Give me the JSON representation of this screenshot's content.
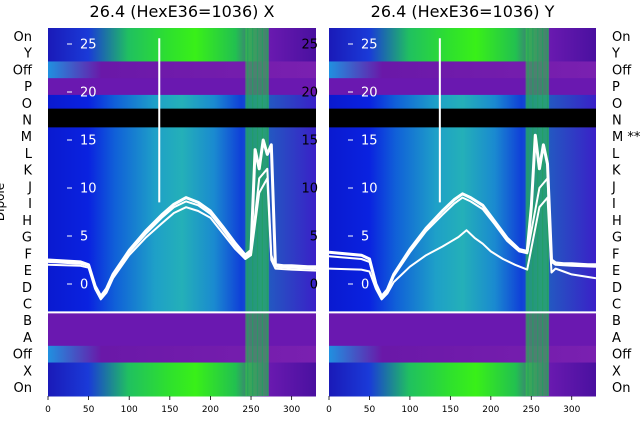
{
  "chart_data": [
    {
      "type": "heatmap",
      "title": "26.4 (HexE36=1036) X",
      "ylabel": "Dipole",
      "xlim": [
        0,
        330
      ],
      "x_ticks": [
        0,
        50,
        100,
        150,
        200,
        250,
        300
      ],
      "rows_top_to_bottom": [
        "On",
        "Y",
        "Off",
        "P",
        "O",
        "N",
        "M",
        "L",
        "K",
        "J",
        "I",
        "H",
        "G",
        "F",
        "E",
        "D",
        "C",
        "B",
        "A",
        "Off",
        "X",
        "On"
      ],
      "inset_ylim": [
        -3,
        27
      ],
      "inset_y_ticks": [
        25,
        20,
        15,
        10,
        5,
        0
      ],
      "overlay_series": [
        {
          "x": [
            0,
            40,
            50,
            58,
            65,
            72,
            80,
            100,
            120,
            140,
            155,
            170,
            185,
            200,
            215,
            230,
            243,
            250,
            255,
            260,
            265,
            270,
            275,
            280,
            290,
            300,
            320,
            330
          ],
          "y": [
            2.5,
            2.3,
            2.0,
            -0.2,
            -1.3,
            -0.5,
            1.0,
            3.5,
            5.5,
            7.2,
            8.3,
            9.0,
            8.5,
            7.6,
            6.0,
            4.3,
            3.0,
            3.5,
            14.0,
            12.0,
            15.0,
            13.5,
            14.5,
            2.0,
            1.9,
            1.9,
            1.8,
            1.8
          ]
        },
        {
          "x": [
            0,
            40,
            50,
            58,
            65,
            72,
            80,
            100,
            120,
            140,
            155,
            170,
            185,
            200,
            215,
            230,
            243,
            250,
            260,
            270,
            275,
            280,
            300,
            330
          ],
          "y": [
            2.3,
            2.1,
            1.9,
            -0.3,
            -1.5,
            -0.7,
            0.8,
            3.3,
            5.2,
            6.9,
            8.0,
            8.6,
            8.2,
            7.3,
            5.7,
            4.0,
            2.8,
            3.2,
            11.0,
            12.0,
            3.0,
            1.8,
            1.7,
            1.6
          ]
        },
        {
          "x": [
            0,
            40,
            50,
            58,
            65,
            72,
            80,
            100,
            120,
            140,
            155,
            170,
            185,
            200,
            215,
            230,
            243,
            250,
            260,
            270,
            275,
            280,
            300,
            330
          ],
          "y": [
            2.0,
            1.9,
            1.7,
            -0.5,
            -1.6,
            -0.9,
            0.6,
            3.0,
            4.8,
            6.3,
            7.4,
            8.0,
            7.6,
            6.9,
            5.3,
            3.7,
            2.6,
            3.0,
            9.5,
            11.0,
            2.5,
            1.6,
            1.5,
            1.4
          ]
        }
      ],
      "spike_x": 137,
      "spike_y": 25.6
    },
    {
      "type": "heatmap",
      "title": "26.4 (HexE36=1036) Y",
      "xlim": [
        0,
        330
      ],
      "x_ticks": [
        0,
        50,
        100,
        150,
        200,
        250,
        300
      ],
      "rows_top_to_bottom": [
        "On",
        "Y",
        "Off",
        "P",
        "O",
        "N",
        "M **",
        "L",
        "K",
        "J",
        "I",
        "H",
        "G",
        "F",
        "E",
        "D",
        "C",
        "B",
        "A",
        "Off",
        "X",
        "On"
      ],
      "inset_ylim": [
        -3,
        27
      ],
      "inset_y_ticks": [
        25,
        20,
        15,
        10,
        5,
        0
      ],
      "overlay_series": [
        {
          "x": [
            0,
            40,
            50,
            58,
            65,
            72,
            80,
            100,
            120,
            140,
            155,
            165,
            175,
            190,
            205,
            220,
            235,
            245,
            250,
            255,
            260,
            265,
            270,
            275,
            280,
            290,
            300,
            320,
            330
          ],
          "y": [
            3.3,
            3.0,
            2.6,
            0.0,
            -1.3,
            -0.6,
            1.0,
            3.6,
            5.8,
            7.6,
            8.8,
            9.4,
            9.0,
            8.2,
            6.5,
            4.8,
            3.6,
            3.4,
            8.0,
            15.5,
            12.0,
            14.5,
            12.5,
            2.5,
            2.2,
            2.1,
            2.1,
            2.0,
            2.0
          ]
        },
        {
          "x": [
            0,
            40,
            50,
            58,
            65,
            72,
            80,
            100,
            120,
            140,
            155,
            165,
            175,
            190,
            205,
            220,
            235,
            245,
            260,
            270,
            275,
            280,
            300,
            330
          ],
          "y": [
            2.9,
            2.6,
            2.3,
            -0.2,
            -1.4,
            -0.8,
            0.8,
            3.3,
            5.5,
            7.2,
            8.4,
            9.0,
            8.6,
            7.8,
            6.2,
            4.5,
            3.4,
            3.2,
            10.0,
            11.0,
            2.3,
            2.0,
            1.9,
            1.8
          ]
        },
        {
          "x": [
            0,
            40,
            50,
            58,
            65,
            72,
            80,
            100,
            120,
            140,
            150,
            160,
            170,
            180,
            190,
            200,
            215,
            230,
            245,
            260,
            270,
            275,
            280,
            290,
            300,
            330
          ],
          "y": [
            1.6,
            1.5,
            1.3,
            -0.5,
            -1.6,
            -1.0,
            0.2,
            1.8,
            3.0,
            3.9,
            4.4,
            4.9,
            5.6,
            4.8,
            4.2,
            3.4,
            2.6,
            2.0,
            1.5,
            8.0,
            9.0,
            1.2,
            1.6,
            1.3,
            1.0,
            0.6
          ]
        }
      ],
      "spike_x": 137,
      "spike_y": 25.6
    }
  ]
}
